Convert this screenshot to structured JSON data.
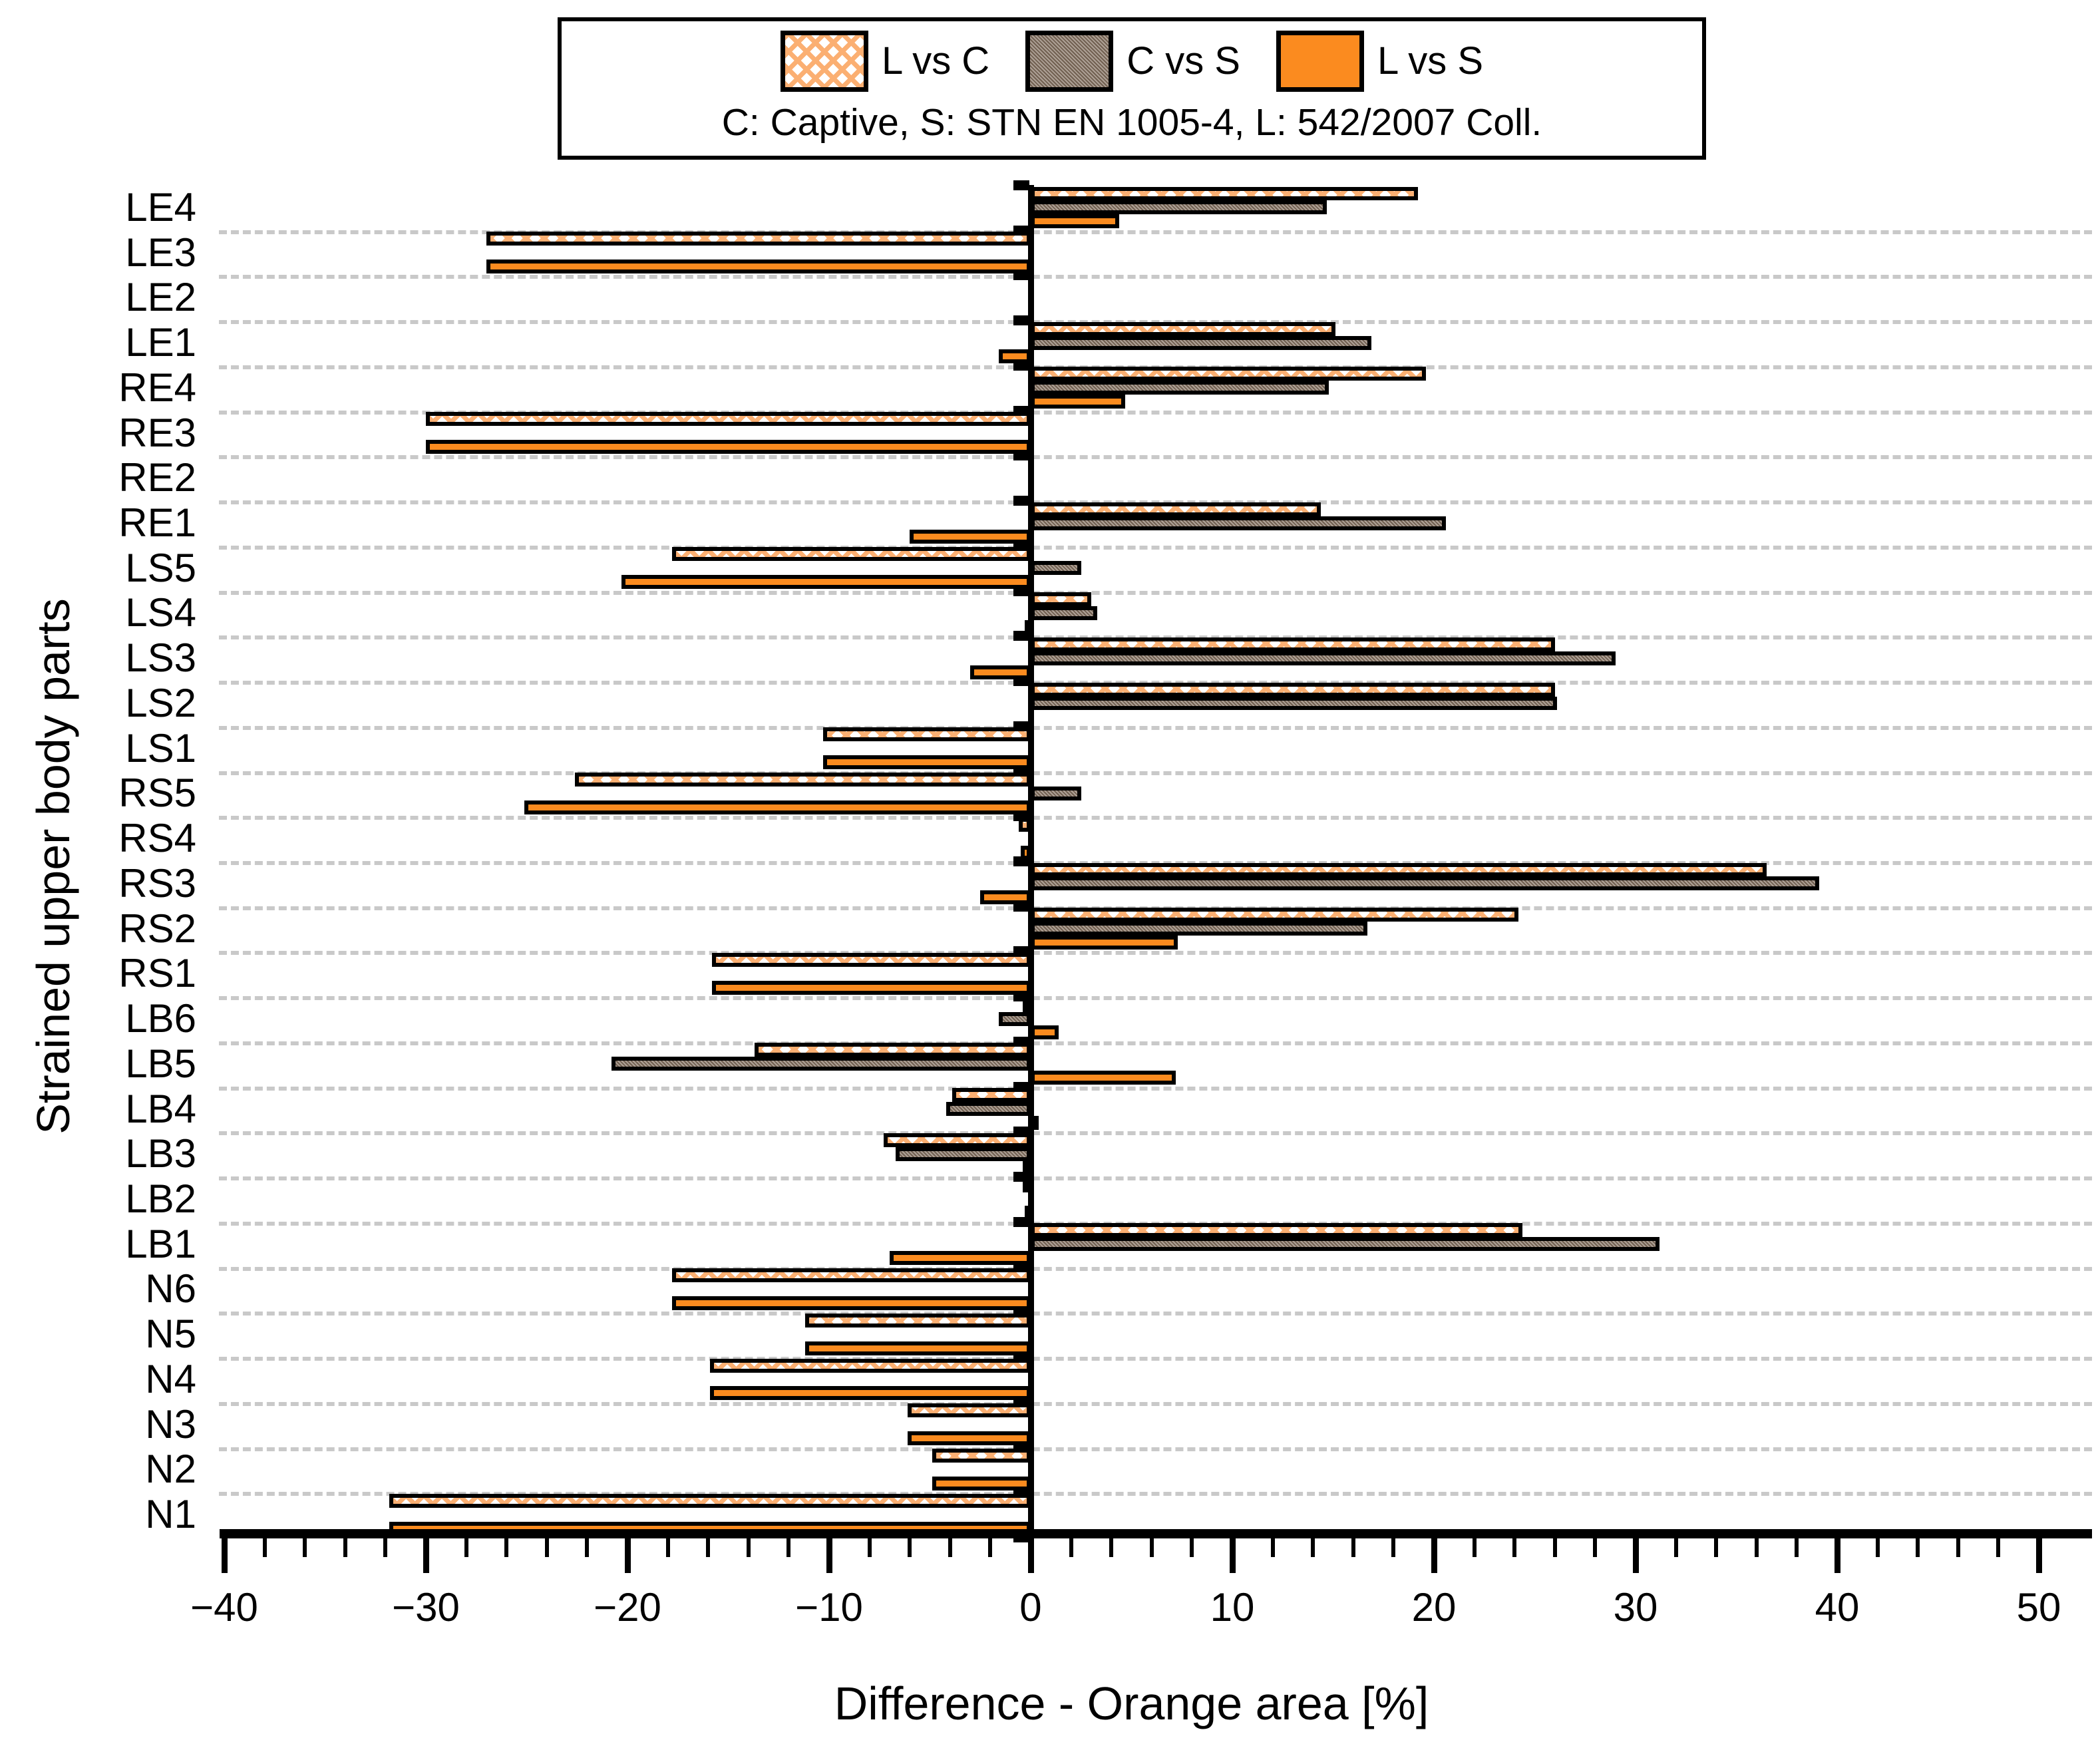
{
  "legend": {
    "series": [
      {
        "label": "L vs C",
        "pattern": "orange-crosshatch"
      },
      {
        "label": "C vs S",
        "pattern": "brown-texture"
      },
      {
        "label": "L vs S",
        "pattern": "solid-orange"
      }
    ],
    "caption": "C: Captive, S: STN EN 1005-4, L: 542/2007 Coll."
  },
  "axes": {
    "x_title": "Difference - Orange area [%]",
    "y_title": "Strained upper body parts",
    "x_tick_values": [
      -40,
      -30,
      -20,
      -10,
      0,
      10,
      20,
      30,
      40,
      50
    ],
    "x_tick_labels": [
      "−40",
      "−30",
      "−20",
      "−10",
      "0",
      "10",
      "20",
      "30",
      "40",
      "50"
    ],
    "x_minor_step": 2
  },
  "colors": {
    "solid_orange": "#fb8b1f",
    "hatch_orange": "#fbaf72",
    "brown": "#8d7b6c",
    "gridline": "#c9c9c9"
  },
  "chart_data": {
    "type": "bar",
    "orientation": "horizontal",
    "xlabel": "Difference - Orange area [%]",
    "ylabel": "Strained upper body parts",
    "xlim": [
      -40,
      50
    ],
    "grid": "dashed horizontal between category groups",
    "legend_position": "top center, outside plot",
    "categories": [
      "LE4",
      "LE3",
      "LE2",
      "LE1",
      "RE4",
      "RE3",
      "RE2",
      "RE1",
      "LS5",
      "LS4",
      "LS3",
      "LS2",
      "LS1",
      "RS5",
      "RS4",
      "RS3",
      "RS2",
      "RS1",
      "LB6",
      "LB5",
      "LB4",
      "LB3",
      "LB2",
      "LB1",
      "N6",
      "N5",
      "N4",
      "N3",
      "N2",
      "N1"
    ],
    "series": [
      {
        "name": "L vs C",
        "values": [
          19.2,
          -27.0,
          0,
          15.1,
          19.6,
          -30.0,
          0,
          14.4,
          -17.8,
          3.0,
          26.0,
          26.0,
          -10.3,
          -22.6,
          -0.6,
          36.5,
          24.2,
          -15.8,
          -0.4,
          -13.7,
          -3.9,
          -7.3,
          -0.4,
          24.4,
          -17.8,
          -11.2,
          -15.9,
          -6.1,
          -4.9,
          -31.8
        ]
      },
      {
        "name": "C vs S",
        "values": [
          14.7,
          0,
          0,
          16.9,
          14.8,
          0,
          0,
          20.6,
          2.5,
          3.3,
          29.0,
          26.1,
          0,
          2.5,
          0,
          39.1,
          16.7,
          0,
          -1.6,
          -20.8,
          -4.2,
          -6.7,
          0,
          31.2,
          0,
          0,
          0,
          0,
          0,
          0
        ]
      },
      {
        "name": "L vs S",
        "values": [
          4.4,
          -27.0,
          0,
          -1.6,
          4.7,
          -30.0,
          0,
          -6.0,
          -20.3,
          -0.3,
          -3.0,
          0,
          -10.3,
          -25.1,
          -0.5,
          -2.5,
          7.3,
          -15.8,
          1.4,
          7.2,
          0.3,
          -0.4,
          -0.3,
          -7.0,
          -17.8,
          -11.2,
          -15.9,
          -6.1,
          -4.9,
          -31.8
        ]
      }
    ]
  }
}
